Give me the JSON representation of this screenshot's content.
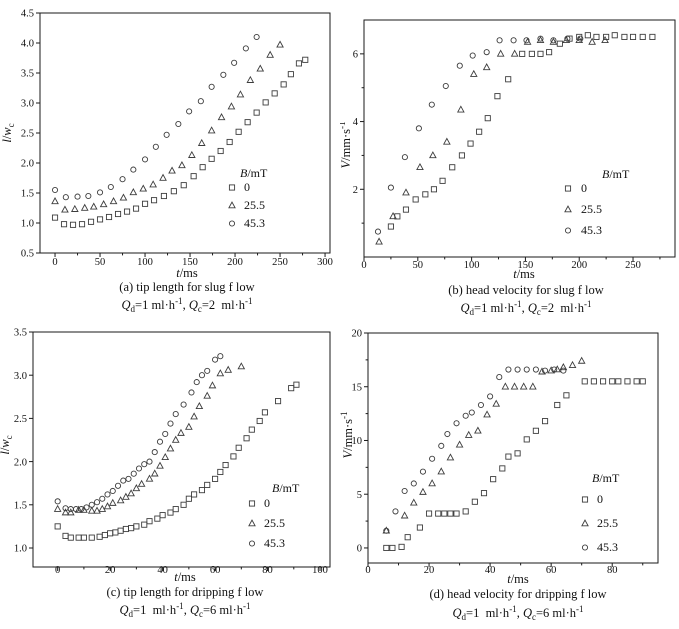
{
  "figure": {
    "background": "#ffffff",
    "marker_color": "#3d3d3d",
    "axis_color": "#1a1a1a",
    "text_color": "#111111"
  },
  "legend": {
    "title": "*B*/mT",
    "entries": [
      {
        "marker": "square",
        "label": "0"
      },
      {
        "marker": "triangle",
        "label": "25.5"
      },
      {
        "marker": "circle",
        "label": "45.3"
      }
    ],
    "position": "lower right inside plot"
  },
  "chart_data": [
    {
      "id": "a",
      "type": "scatter",
      "title": "(a) tip length for slug f low",
      "subtitle": "*Q*_{d}=1 ml·h^{-1}, *Q*_{c}=2  ml·h^{-1}",
      "xlabel": "*t*/ms",
      "ylabel": "*l*/*w*_{c}",
      "xlim": [
        -16.7,
        305.5
      ],
      "ylim": [
        0.5,
        4.5
      ],
      "xticks": [
        "0",
        "50",
        "100",
        "150",
        "200",
        "250",
        "300"
      ],
      "yticks": [
        "0.5",
        "1.0",
        "1.5",
        "2.0",
        "2.5",
        "3.0",
        "3.5",
        "4.0",
        "4.5"
      ],
      "xticks_minor": [
        25,
        75,
        125,
        175,
        225,
        275
      ],
      "yticks_minor": [],
      "grid": false,
      "series": [
        {
          "name": "B=0 mT",
          "marker": "square",
          "x": [
            0,
            10,
            20,
            30,
            40,
            50,
            60,
            70,
            80,
            90,
            100,
            110,
            121,
            132,
            143,
            154,
            164,
            174,
            184,
            194,
            204,
            214,
            224,
            234,
            244,
            254,
            262,
            271,
            278
          ],
          "y": [
            1.09,
            0.98,
            0.97,
            0.98,
            1.02,
            1.06,
            1.1,
            1.15,
            1.19,
            1.24,
            1.32,
            1.38,
            1.45,
            1.53,
            1.63,
            1.78,
            1.93,
            2.07,
            2.2,
            2.35,
            2.52,
            2.68,
            2.84,
            3.01,
            3.16,
            3.31,
            3.48,
            3.66,
            3.72
          ]
        },
        {
          "name": "B=25.5 mT",
          "marker": "triangle",
          "x": [
            0,
            11,
            22,
            33,
            43,
            54,
            65,
            76,
            87,
            98,
            109,
            120,
            130,
            141,
            152,
            163,
            174,
            185,
            196,
            206,
            217,
            228,
            239,
            250
          ],
          "y": [
            1.36,
            1.22,
            1.23,
            1.25,
            1.27,
            1.31,
            1.36,
            1.42,
            1.51,
            1.57,
            1.64,
            1.75,
            1.87,
            1.96,
            2.13,
            2.33,
            2.54,
            2.76,
            2.94,
            3.14,
            3.38,
            3.57,
            3.8,
            3.97
          ]
        },
        {
          "name": "B=45.3 mT",
          "marker": "circle",
          "x": [
            0,
            12,
            25,
            37,
            50,
            62,
            75,
            87,
            100,
            112,
            124,
            137,
            149,
            162,
            174,
            187,
            199,
            212,
            224
          ],
          "y": [
            1.55,
            1.43,
            1.44,
            1.45,
            1.51,
            1.6,
            1.73,
            1.89,
            2.06,
            2.27,
            2.47,
            2.65,
            2.86,
            3.03,
            3.27,
            3.47,
            3.67,
            3.91,
            4.1
          ]
        }
      ]
    },
    {
      "id": "b",
      "type": "scatter",
      "title": "(b) head velocity for slug f low",
      "subtitle": "*Q*_{d}=1 ml·h^{-1}, *Q*_{c}=2  ml·h^{-1}",
      "xlabel": "*t*/ms",
      "ylabel": "*V*/mm·s^{-1}",
      "xlim": [
        0,
        289
      ],
      "ylim": [
        0,
        7
      ],
      "xticks": [
        "0",
        "50",
        "100",
        "150",
        "200",
        "250"
      ],
      "yticks": [
        "2",
        "4",
        "6"
      ],
      "xticks_minor": [
        25,
        75,
        125,
        175,
        225,
        275
      ],
      "yticks_minor": [
        1,
        3,
        5,
        7
      ],
      "grid": false,
      "series": [
        {
          "name": "B=0 mT",
          "marker": "square",
          "x": [
            25,
            31,
            39,
            48,
            57,
            65,
            73,
            82,
            91,
            99,
            107,
            115,
            124,
            134,
            147,
            156,
            164,
            172,
            182,
            191,
            200,
            208,
            216,
            225,
            233,
            242,
            250,
            259,
            268
          ],
          "y": [
            0.9,
            1.2,
            1.4,
            1.7,
            1.85,
            2.0,
            2.25,
            2.65,
            3.0,
            3.35,
            3.7,
            4.1,
            4.75,
            5.25,
            6.0,
            6.0,
            6.0,
            6.05,
            6.3,
            6.45,
            6.5,
            6.55,
            6.5,
            6.5,
            6.55,
            6.5,
            6.5,
            6.5,
            6.5
          ]
        },
        {
          "name": "B=25.5 mT",
          "marker": "triangle",
          "x": [
            14,
            27,
            39,
            52,
            64,
            77,
            90,
            102,
            114,
            127,
            140,
            152,
            164,
            176,
            188,
            200,
            212,
            224
          ],
          "y": [
            0.45,
            1.2,
            1.9,
            2.65,
            3.0,
            3.4,
            4.35,
            5.4,
            5.6,
            6.0,
            6.0,
            6.35,
            6.4,
            6.35,
            6.4,
            6.4,
            6.35,
            6.4
          ]
        },
        {
          "name": "B=45.3 mT",
          "marker": "circle",
          "x": [
            13,
            25,
            38,
            51,
            63,
            76,
            89,
            101,
            114,
            126,
            139,
            151,
            164,
            176,
            189,
            201
          ],
          "y": [
            0.75,
            2.05,
            2.95,
            3.8,
            4.5,
            5.05,
            5.65,
            5.95,
            6.05,
            6.4,
            6.4,
            6.4,
            6.45,
            6.4,
            6.45,
            6.45
          ]
        }
      ]
    },
    {
      "id": "c",
      "type": "scatter",
      "title": "(c) tip length for dripping f low",
      "subtitle": "*Q*_{d}=1  ml·h^{-1}, *Q*_{c}=6 ml·h^{-1}",
      "xlabel": "*t*/ms",
      "ylabel": "*l*/*w*_{c}",
      "xlim": [
        -9.4,
        103.8
      ],
      "ylim": [
        0.78,
        3.5
      ],
      "xticks": [
        "0",
        "20",
        "40",
        "60",
        "80",
        "100"
      ],
      "yticks": [
        "1.0",
        "1.5",
        "2.0",
        "2.5",
        "3.0",
        "3.5"
      ],
      "xticks_minor": [
        10,
        30,
        50,
        70,
        90
      ],
      "yticks_minor": [],
      "grid": false,
      "series": [
        {
          "name": "B=0 mT",
          "marker": "square",
          "x": [
            0,
            3,
            5,
            8,
            10,
            13,
            16,
            18,
            20,
            22,
            24,
            26,
            28,
            30,
            33,
            35,
            38,
            40,
            43,
            45,
            48,
            50,
            52,
            55,
            57,
            60,
            62,
            64,
            67,
            69,
            72,
            74,
            77,
            79,
            84,
            89,
            91
          ],
          "y": [
            1.25,
            1.14,
            1.12,
            1.12,
            1.12,
            1.12,
            1.13,
            1.15,
            1.17,
            1.18,
            1.2,
            1.22,
            1.23,
            1.25,
            1.27,
            1.31,
            1.34,
            1.38,
            1.41,
            1.45,
            1.5,
            1.57,
            1.62,
            1.67,
            1.73,
            1.8,
            1.88,
            1.96,
            2.06,
            2.16,
            2.27,
            2.37,
            2.47,
            2.57,
            2.7,
            2.85,
            2.89
          ]
        },
        {
          "name": "B=25.5 mT",
          "marker": "triangle",
          "x": [
            0,
            3,
            5,
            8,
            10,
            13,
            15,
            17,
            19,
            21,
            24,
            26,
            28,
            30,
            32,
            35,
            37,
            39,
            41,
            43,
            45,
            47,
            50,
            52,
            54,
            57,
            59,
            62,
            65,
            70
          ],
          "y": [
            1.45,
            1.41,
            1.41,
            1.44,
            1.44,
            1.43,
            1.43,
            1.45,
            1.48,
            1.52,
            1.55,
            1.59,
            1.63,
            1.69,
            1.74,
            1.8,
            1.86,
            1.95,
            2.05,
            2.15,
            2.25,
            2.33,
            2.4,
            2.52,
            2.64,
            2.76,
            2.88,
            3.02,
            3.06,
            3.1
          ]
        },
        {
          "name": "B=45.3 mT",
          "marker": "circle",
          "x": [
            0,
            3,
            5,
            7,
            9,
            11,
            13,
            15,
            17,
            19,
            21,
            23,
            25,
            27,
            29,
            31,
            33,
            35,
            37,
            39,
            41,
            43,
            45,
            48,
            51,
            53,
            55,
            57,
            60,
            62
          ],
          "y": [
            1.54,
            1.46,
            1.45,
            1.45,
            1.45,
            1.47,
            1.5,
            1.53,
            1.57,
            1.62,
            1.66,
            1.72,
            1.78,
            1.8,
            1.86,
            1.92,
            1.97,
            2.0,
            2.11,
            2.23,
            2.32,
            2.44,
            2.55,
            2.66,
            2.8,
            2.92,
            3.0,
            3.05,
            3.18,
            3.22
          ]
        }
      ]
    },
    {
      "id": "d",
      "type": "scatter",
      "title": "(d) head velocity for dripping f low",
      "subtitle": "*Q*_{d}=1  ml·h^{-1}, *Q*_{c}=6 ml·h^{-1}",
      "xlabel": "*t*/ms",
      "ylabel": "*V*/mm·s^{-1}",
      "xlim": [
        0,
        95
      ],
      "ylim": [
        -1.4,
        20
      ],
      "xticks": [
        "0",
        "20",
        "40",
        "60",
        "80"
      ],
      "yticks": [
        "0",
        "5",
        "10",
        "15",
        "20"
      ],
      "xticks_minor": [
        10,
        30,
        50,
        70,
        90
      ],
      "yticks_minor": [
        2.5,
        7.5,
        12.5,
        17.5
      ],
      "grid": false,
      "series": [
        {
          "name": "B=0 mT",
          "marker": "square",
          "x": [
            6,
            8,
            11,
            13,
            17,
            20,
            23,
            25,
            27,
            29,
            32,
            35,
            38,
            41,
            44,
            46,
            49,
            52,
            55,
            58,
            62,
            65,
            71,
            74,
            77,
            80,
            82,
            85,
            88,
            90
          ],
          "y": [
            0,
            0,
            0.1,
            1.0,
            1.9,
            3.2,
            3.2,
            3.2,
            3.2,
            3.2,
            3.4,
            4.3,
            5.1,
            6.4,
            7.4,
            8.5,
            8.8,
            10.1,
            10.9,
            11.8,
            13.3,
            14.2,
            15.5,
            15.5,
            15.5,
            15.5,
            15.5,
            15.5,
            15.5,
            15.5
          ]
        },
        {
          "name": "B=25.5 mT",
          "marker": "triangle",
          "x": [
            6,
            12,
            15,
            18,
            21,
            24,
            27,
            30,
            33,
            36,
            39,
            42,
            45,
            48,
            51,
            54,
            57,
            60,
            62,
            64,
            67,
            70
          ],
          "y": [
            1.6,
            3.0,
            4.2,
            5.2,
            6.0,
            7.1,
            8.4,
            9.6,
            10.5,
            10.9,
            12.4,
            13.4,
            15.0,
            15.0,
            15.0,
            15.0,
            16.4,
            16.5,
            16.6,
            16.8,
            17.0,
            17.4
          ]
        },
        {
          "name": "B=45.3 mT",
          "marker": "circle",
          "x": [
            6,
            9,
            12,
            15,
            18,
            21,
            24,
            26,
            29,
            32,
            34,
            37,
            40,
            43,
            46,
            49,
            52,
            55,
            58,
            61,
            64
          ],
          "y": [
            1.6,
            3.4,
            5.3,
            6.0,
            7.1,
            8.3,
            9.5,
            10.6,
            11.6,
            12.3,
            12.6,
            13.3,
            14.1,
            15.9,
            16.6,
            16.6,
            16.6,
            16.6,
            16.5,
            16.6,
            16.5
          ]
        }
      ]
    }
  ]
}
